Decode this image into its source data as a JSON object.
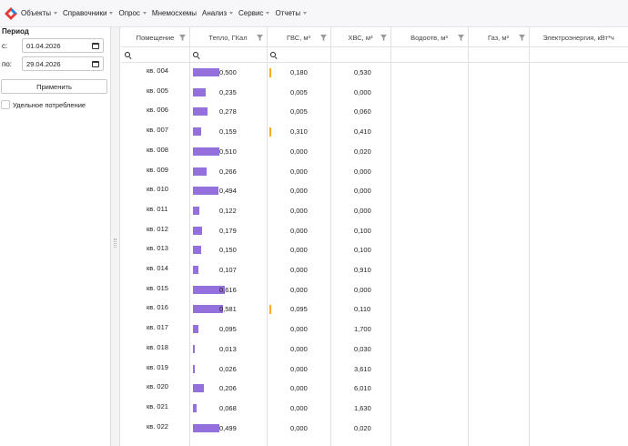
{
  "menu": {
    "items": [
      {
        "label": "Объекты",
        "dropdown": true
      },
      {
        "label": "Справочники",
        "dropdown": true
      },
      {
        "label": "Опрос",
        "dropdown": true
      },
      {
        "label": "Мнемосхемы",
        "dropdown": false
      },
      {
        "label": "Анализ",
        "dropdown": true
      },
      {
        "label": "Сервис",
        "dropdown": true
      },
      {
        "label": "Отчеты",
        "dropdown": true
      }
    ]
  },
  "sidebar": {
    "period_title": "Период",
    "from_label": "с:",
    "from_value": "01.04.2026",
    "to_label": "по:",
    "to_value": "29.04.2026",
    "apply_label": "Применить",
    "specific_label": "Удельное потребление"
  },
  "grid": {
    "columns": [
      {
        "key": "room",
        "label": "Помещение"
      },
      {
        "key": "teplo",
        "label": "Тепло, ГКал"
      },
      {
        "key": "gvs",
        "label": "ГВС, м³"
      },
      {
        "key": "hvs",
        "label": "ХВС, м³"
      },
      {
        "key": "vodootv",
        "label": "Водоотв, м³"
      },
      {
        "key": "gaz",
        "label": "Газ, м³"
      },
      {
        "key": "elektro",
        "label": "Электроэнергия, кВт*ч"
      }
    ],
    "bar_colors": {
      "teplo": "#9370db",
      "gvs": "#ffa726"
    },
    "rows": [
      {
        "room": "кв. 004",
        "teplo": "0,500",
        "teplo_frac": 0.82,
        "gvs": "0,180",
        "gvs_bar": true,
        "hvs": "0,530"
      },
      {
        "room": "кв. 005",
        "teplo": "0,235",
        "teplo_frac": 0.39,
        "gvs": "0,005",
        "gvs_bar": false,
        "hvs": "0,000"
      },
      {
        "room": "кв. 006",
        "teplo": "0,278",
        "teplo_frac": 0.46,
        "gvs": "0,005",
        "gvs_bar": false,
        "hvs": "0,060"
      },
      {
        "room": "кв. 007",
        "teplo": "0,159",
        "teplo_frac": 0.26,
        "gvs": "0,310",
        "gvs_bar": true,
        "hvs": "0,410"
      },
      {
        "room": "кв. 008",
        "teplo": "0,510",
        "teplo_frac": 0.84,
        "gvs": "0,000",
        "gvs_bar": false,
        "hvs": "0,020"
      },
      {
        "room": "кв. 009",
        "teplo": "0,266",
        "teplo_frac": 0.44,
        "gvs": "0,000",
        "gvs_bar": false,
        "hvs": "0,000"
      },
      {
        "room": "кв. 010",
        "teplo": "0,494",
        "teplo_frac": 0.81,
        "gvs": "0,000",
        "gvs_bar": false,
        "hvs": "0,000"
      },
      {
        "room": "кв. 011",
        "teplo": "0,122",
        "teplo_frac": 0.2,
        "gvs": "0,000",
        "gvs_bar": false,
        "hvs": "0,000"
      },
      {
        "room": "кв. 012",
        "teplo": "0,179",
        "teplo_frac": 0.29,
        "gvs": "0,000",
        "gvs_bar": false,
        "hvs": "0,100"
      },
      {
        "room": "кв. 013",
        "teplo": "0,150",
        "teplo_frac": 0.25,
        "gvs": "0,000",
        "gvs_bar": false,
        "hvs": "0,100"
      },
      {
        "room": "кв. 014",
        "teplo": "0,107",
        "teplo_frac": 0.18,
        "gvs": "0,000",
        "gvs_bar": false,
        "hvs": "0,910"
      },
      {
        "room": "кв. 015",
        "teplo": "0,616",
        "teplo_frac": 1.0,
        "gvs": "0,000",
        "gvs_bar": false,
        "hvs": "0,000"
      },
      {
        "room": "кв. 016",
        "teplo": "0,581",
        "teplo_frac": 0.95,
        "gvs": "0,095",
        "gvs_bar": true,
        "hvs": "0,110"
      },
      {
        "room": "кв. 017",
        "teplo": "0,095",
        "teplo_frac": 0.16,
        "gvs": "0,000",
        "gvs_bar": false,
        "hvs": "1,700"
      },
      {
        "room": "кв. 018",
        "teplo": "0,013",
        "teplo_frac": 0.03,
        "gvs": "0,000",
        "gvs_bar": false,
        "hvs": "0,030"
      },
      {
        "room": "кв. 019",
        "teplo": "0,026",
        "teplo_frac": 0.05,
        "gvs": "0,000",
        "gvs_bar": false,
        "hvs": "3,610"
      },
      {
        "room": "кв. 020",
        "teplo": "0,206",
        "teplo_frac": 0.34,
        "gvs": "0,000",
        "gvs_bar": false,
        "hvs": "6,010"
      },
      {
        "room": "кв. 021",
        "teplo": "0,068",
        "teplo_frac": 0.11,
        "gvs": "0,000",
        "gvs_bar": false,
        "hvs": "1,630"
      },
      {
        "room": "кв. 022",
        "teplo": "0,499",
        "teplo_frac": 0.82,
        "gvs": "0,000",
        "gvs_bar": false,
        "hvs": "0,020"
      }
    ]
  }
}
